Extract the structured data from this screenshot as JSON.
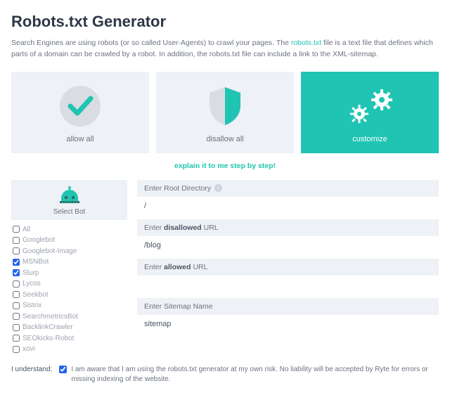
{
  "colors": {
    "accent": "#20c4b2",
    "panel_bg": "#eef1f5",
    "text_muted": "#6b7280",
    "text_dark": "#2d3748"
  },
  "page": {
    "title": "Robots.txt Generator",
    "intro_pre": "Search Engines are using robots (or so called User-Agents) to crawl your pages. The ",
    "intro_link": "robots.txt",
    "intro_post": " file is a text file that defines which parts of a domain can be crawled by a robot. In addition, the robots.txt file can include a link to the XML-sitemap."
  },
  "cards": {
    "allow": "allow all",
    "disallow": "disallow all",
    "customize": "customize"
  },
  "explain_link": "explain it to me step by step!",
  "bot_panel": {
    "header": "Select Bot",
    "items": [
      {
        "label": "All",
        "checked": false
      },
      {
        "label": "Googlebot",
        "checked": false
      },
      {
        "label": "Googlebot-Image",
        "checked": false
      },
      {
        "label": "MSNBot",
        "checked": true
      },
      {
        "label": "Slurp",
        "checked": true
      },
      {
        "label": "Lycos",
        "checked": false
      },
      {
        "label": "Seekbot",
        "checked": false
      },
      {
        "label": "Sistrix",
        "checked": false
      },
      {
        "label": "SearchmetricsBot",
        "checked": false
      },
      {
        "label": "BacklinkCrawler",
        "checked": false
      },
      {
        "label": "SEOkicks-Robot",
        "checked": false
      },
      {
        "label": "xovi",
        "checked": false
      }
    ]
  },
  "fields": {
    "root_label_pre": "Enter Root Directory",
    "root_value": "/",
    "disallow_label_pre": "Enter ",
    "disallow_label_bold": "disallowed",
    "disallow_label_post": " URL",
    "disallow_value": "/blog",
    "allow_label_pre": "Enter ",
    "allow_label_bold": "allowed",
    "allow_label_post": " URL",
    "allow_value": "",
    "sitemap_label": "Enter Sitemap Name",
    "sitemap_value": "sitemap"
  },
  "consent": {
    "label": "I understand:",
    "checked": true,
    "text": "I am aware that I am using the robots.txt generator at my own risk. No liability will be accepted by Ryte for errors or missing indexing of the website."
  }
}
